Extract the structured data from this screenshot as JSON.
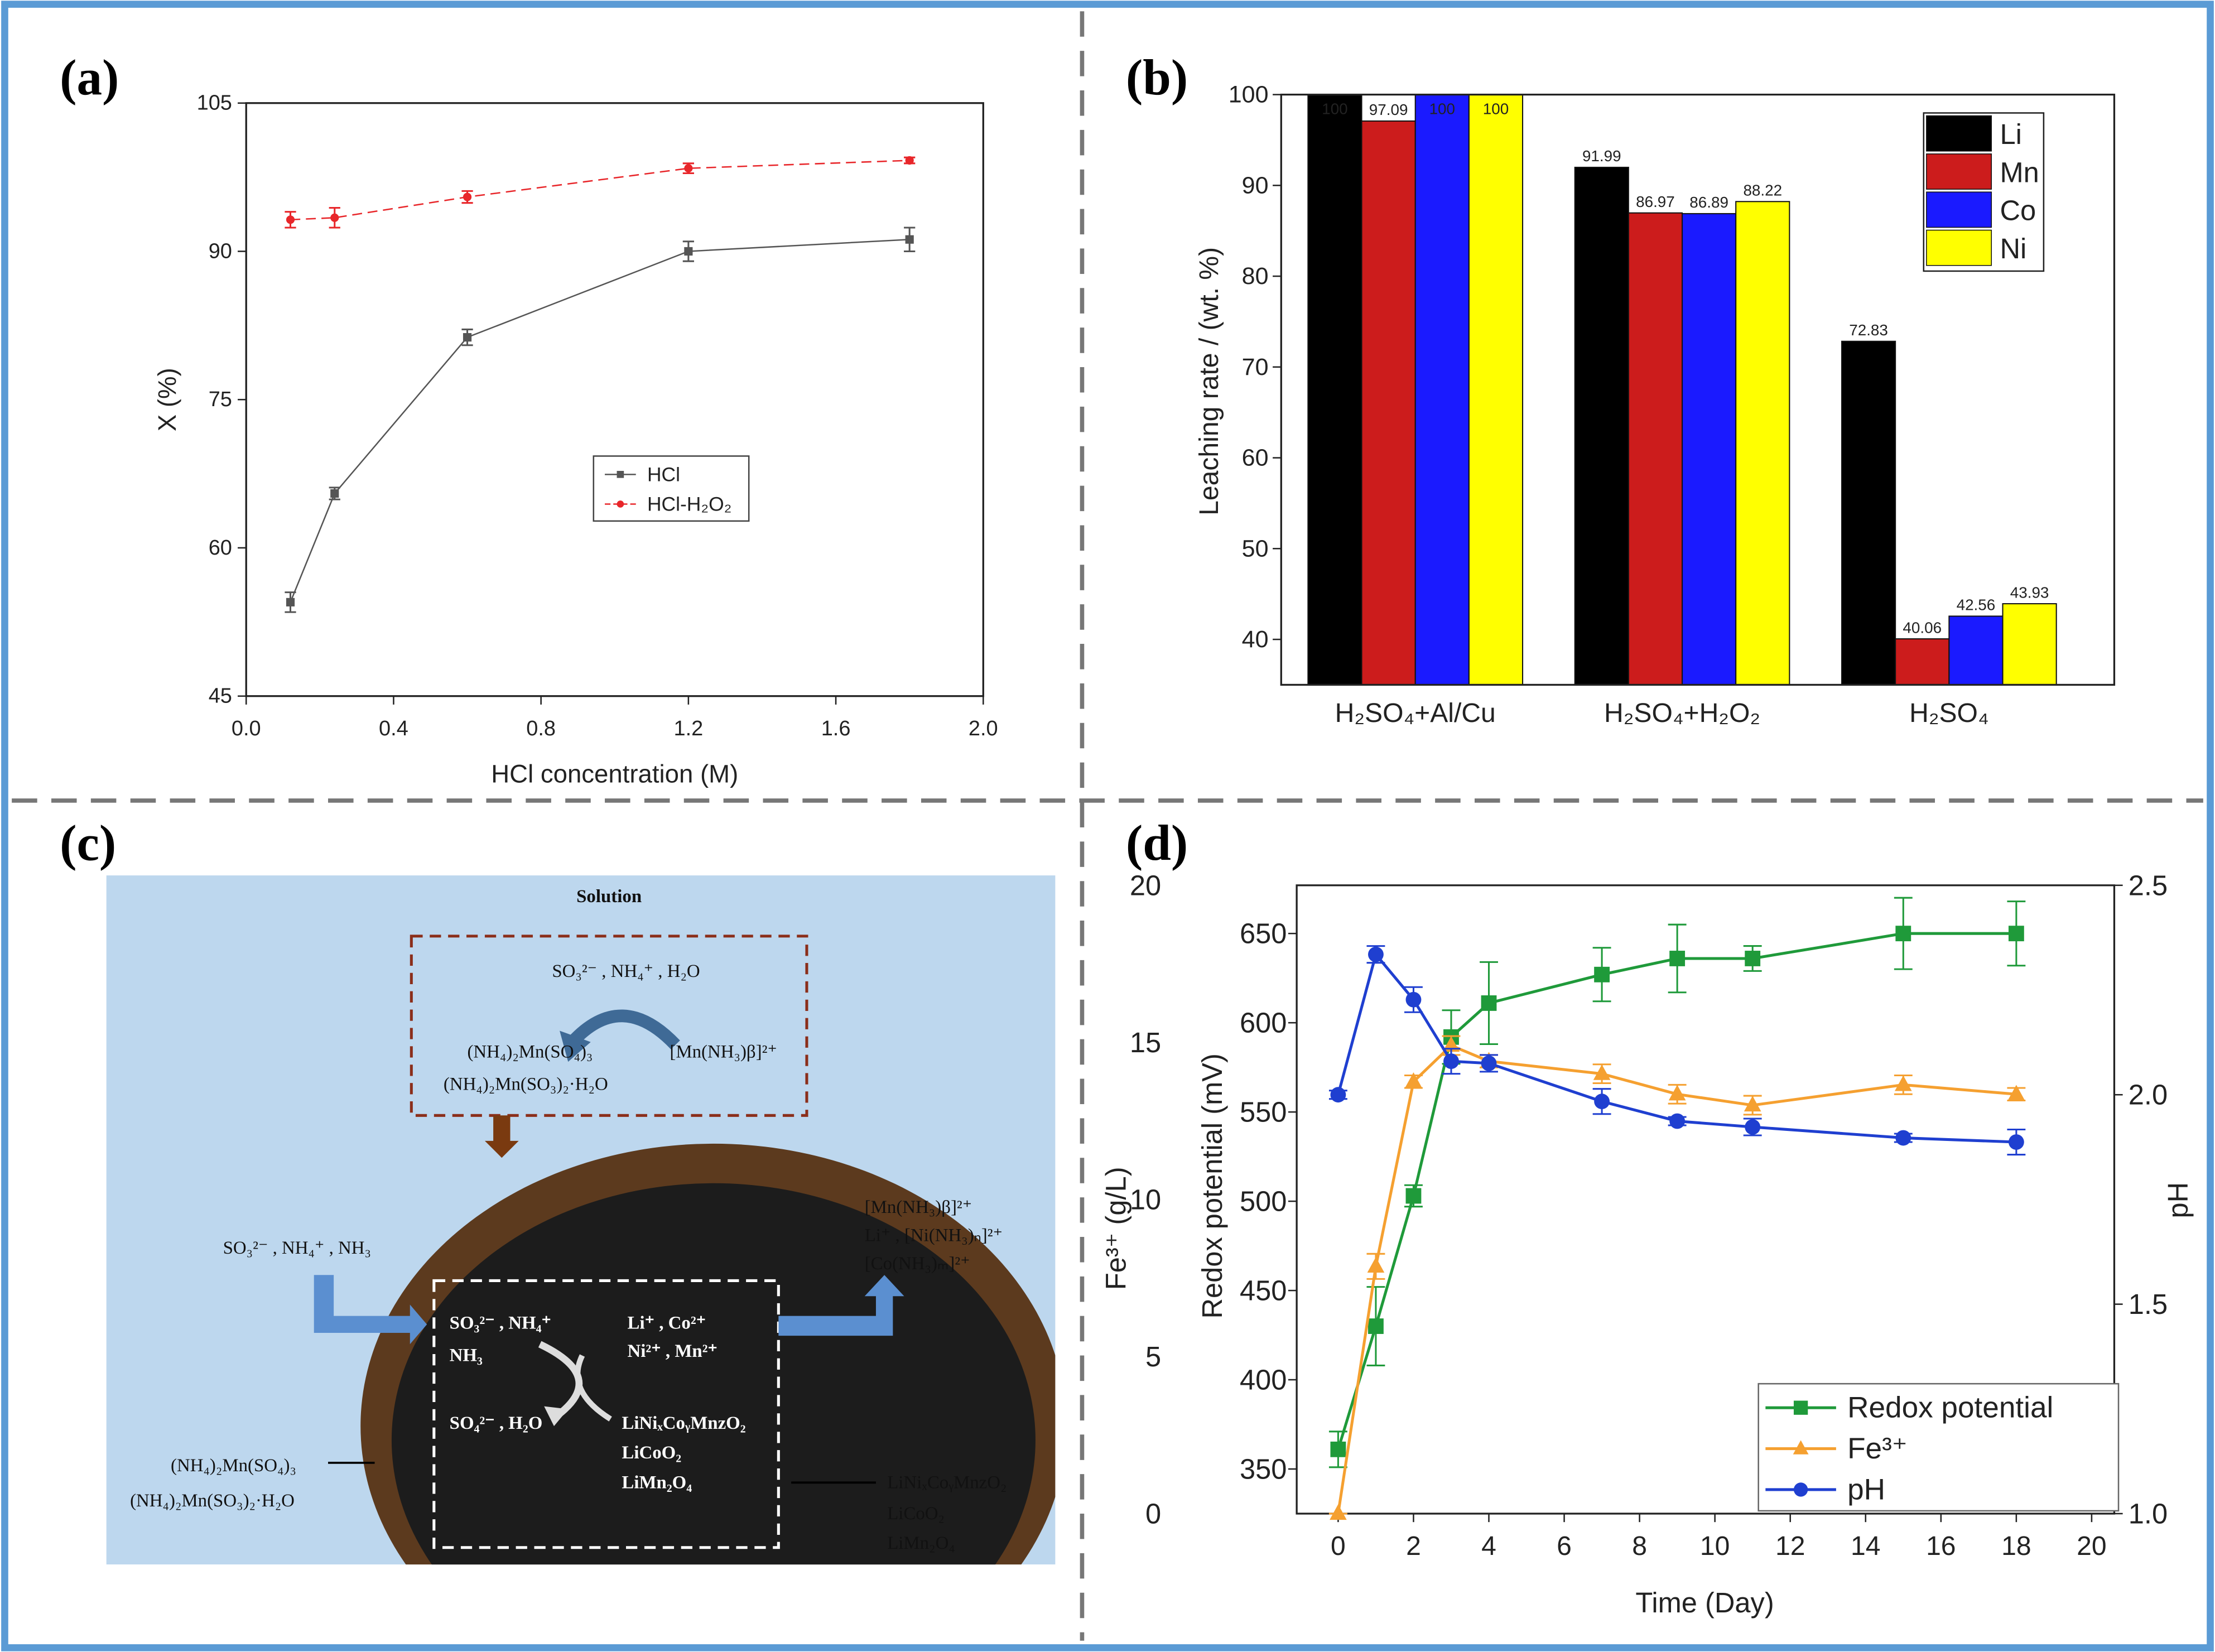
{
  "chart_data": [
    {
      "type": "line",
      "label": "(a)",
      "xlabel": "HCl concentration (M)",
      "ylabel": "X (%)",
      "x": [
        0.12,
        0.24,
        0.6,
        1.2,
        1.8
      ],
      "xlim": [
        0,
        2
      ],
      "xticks": [
        {
          "value": 0,
          "label": "0.0"
        },
        0.4,
        0.8,
        1.2,
        1.6,
        {
          "value": 2,
          "label": "2.0"
        }
      ],
      "ylim": [
        45,
        105
      ],
      "yticks": [
        45,
        60,
        75,
        90,
        105
      ],
      "series": [
        {
          "name": "HCl",
          "color": "#555555",
          "marker": "square",
          "line_style": "solid",
          "values": [
            54.5,
            65.5,
            81.3,
            90,
            91.2
          ],
          "errors": [
            1,
            0.6,
            0.8,
            1,
            1.2
          ]
        },
        {
          "name": "HCl-H₂O₂",
          "color": "#e8262a",
          "marker": "circle",
          "line_style": "dashed",
          "values": [
            93.2,
            93.4,
            95.5,
            98.4,
            99.2
          ],
          "errors": [
            0.8,
            1,
            0.6,
            0.5,
            0.3
          ]
        }
      ]
    },
    {
      "type": "bar",
      "label": "(b)",
      "ylabel": "Leaching rate / (wt. %)",
      "categories": [
        "H₂SO₄+Al/Cu",
        "H₂SO₄+H₂O₂",
        "H₂SO₄"
      ],
      "ylim": [
        35,
        100
      ],
      "yticks": [
        40,
        50,
        60,
        70,
        80,
        90,
        100
      ],
      "series": [
        {
          "name": "Li",
          "color": "#000000",
          "values": [
            100,
            91.99,
            72.83
          ]
        },
        {
          "name": "Mn",
          "color": "#cc1c1c",
          "values": [
            97.09,
            86.97,
            40.06
          ]
        },
        {
          "name": "Co",
          "color": "#1a1aff",
          "values": [
            100,
            86.89,
            42.56
          ]
        },
        {
          "name": "Ni",
          "color": "#ffff00",
          "values": [
            100,
            88.22,
            43.93
          ]
        }
      ]
    },
    {
      "type": "line",
      "label": "(d)",
      "xlabel": "Time (Day)",
      "ylabel": "Redox potential (mV)",
      "y2label": "pH",
      "y3label": "Fe³⁺ (g/L)",
      "x": [
        0,
        1,
        2,
        3,
        4,
        7,
        9,
        11,
        15,
        18
      ],
      "xlim": [
        -1.1,
        20.6
      ],
      "xticks": [
        0,
        2,
        4,
        6,
        8,
        10,
        12,
        14,
        16,
        18,
        20
      ],
      "ylim": [
        325,
        677
      ],
      "yticks": [
        350,
        400,
        450,
        500,
        550,
        600,
        650
      ],
      "y2lim": [
        1,
        2.5
      ],
      "y2ticks": [
        {
          "value": 1,
          "label": "1.0"
        },
        1.5,
        {
          "value": 2,
          "label": "2.0"
        },
        2.5
      ],
      "y3lim": [
        0,
        20
      ],
      "y3ticks": [
        0,
        5,
        10,
        15,
        20
      ],
      "series": [
        {
          "name": "Redox potential",
          "color": "#1f9a3a",
          "marker": "square",
          "axis": "y",
          "values": [
            361,
            430,
            503,
            592,
            611,
            627,
            636,
            636,
            650,
            650
          ],
          "errors": [
            10,
            22,
            6,
            15,
            23,
            15,
            19,
            7,
            20,
            18
          ]
        },
        {
          "name": "Fe³⁺",
          "color": "#f5a030",
          "marker": "triangle",
          "axis": "y3",
          "values": [
            0,
            7.87,
            13.75,
            14.9,
            14.4,
            14.0,
            13.35,
            13.0,
            13.65,
            13.35
          ],
          "errors": [
            0,
            0.4,
            0.2,
            0.3,
            0.2,
            0.3,
            0.3,
            0.3,
            0.3,
            0.2
          ]
        },
        {
          "name": "pH",
          "color": "#1f3fd0",
          "marker": "circle",
          "axis": "y2",
          "values": [
            2.0,
            2.335,
            2.227,
            2.08,
            2.075,
            1.984,
            1.937,
            1.923,
            1.897,
            1.887
          ],
          "errors": [
            0.01,
            0.02,
            0.03,
            0.03,
            0.02,
            0.03,
            0.01,
            0.02,
            0.01,
            0.03
          ]
        }
      ]
    }
  ],
  "diagram": {
    "label": "(c)",
    "texts": [
      "Solution",
      "SO₃²⁻ , NH₄⁺ , H₂O",
      "(NH₄)₂Mn(SO₄)₃",
      "[Mn(NH₃)β]²⁺",
      "(NH₄)₂Mn(SO₃)₂·H₂O",
      "SO₃²⁻ , NH₄⁺ , NH₃",
      "[Mn(NH₃)β]²⁺",
      "Li⁺ , [Ni(NH₃)ₙ]²⁺",
      "[Co(NH₃)ₘ]²⁺",
      "SO₃²⁻ , NH₄⁺",
      "NH₃",
      "Li⁺ , Co²⁺",
      "Ni²⁺ , Mn²⁺",
      "SO₄²⁻ , H₂O",
      "LiNiₓCoᵧMnzO₂",
      "LiCoO₂",
      "LiMn₂O₄",
      "(NH₄)₂Mn(SO₄)₃",
      "(NH₄)₂Mn(SO₃)₂·H₂O",
      "LiNiₓCoᵧMnzO₂",
      "LiCoO₂",
      "LiMn₂O₄"
    ]
  }
}
